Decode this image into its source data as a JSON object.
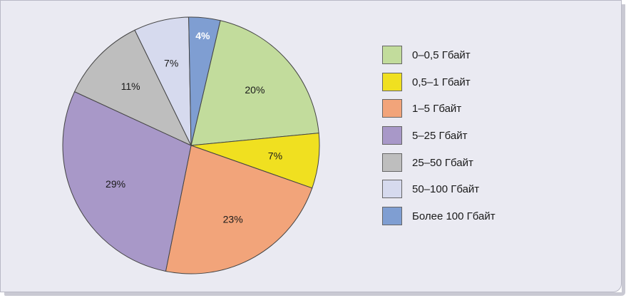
{
  "chart_data": {
    "type": "pie",
    "title": "",
    "legend_position": "right",
    "slices": [
      {
        "label": "0–0,5 Гбайт",
        "value": 20,
        "display": "20%",
        "color": "#c2dc9c"
      },
      {
        "label": "0,5–1 Гбайт",
        "value": 7,
        "display": "7%",
        "color": "#f0e020"
      },
      {
        "label": "1–5 Гбайт",
        "value": 23,
        "display": "23%",
        "color": "#f2a47a"
      },
      {
        "label": "5–25 Гбайт",
        "value": 29,
        "display": "29%",
        "color": "#a898c8"
      },
      {
        "label": "25–50 Гбайт",
        "value": 11,
        "display": "11%",
        "color": "#bebebe"
      },
      {
        "label": "50–100 Гбайт",
        "value": 7,
        "display": "7%",
        "color": "#d6daee"
      },
      {
        "label": "Более 100 Гбайт",
        "value": 4,
        "display": "4%",
        "color": "#7f9ed2"
      }
    ]
  }
}
